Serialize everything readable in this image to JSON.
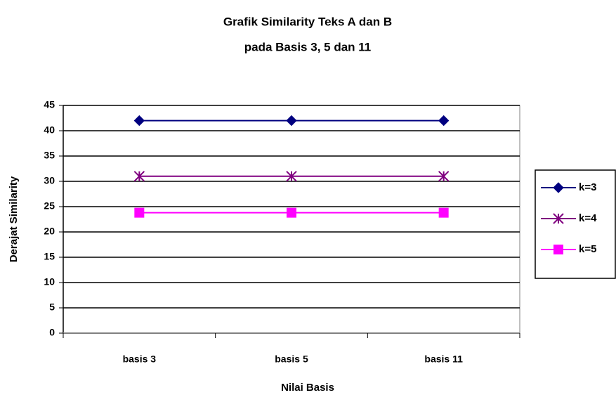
{
  "chart_data": {
    "type": "line",
    "title": "Grafik Similarity Teks A dan B",
    "subtitle": "pada Basis 3, 5 dan 11",
    "x_label": "Nilai Basis",
    "y_label": "Derajat Similarity",
    "categories": [
      "basis 3",
      "basis 5",
      "basis 11"
    ],
    "series": [
      {
        "name": "k=3",
        "color": "#000080",
        "marker": "diamond",
        "values": [
          42,
          42,
          42
        ]
      },
      {
        "name": "k=4",
        "color": "#800080",
        "marker": "asterisk",
        "values": [
          31,
          31,
          31
        ]
      },
      {
        "name": "k=5",
        "color": "#ff00ff",
        "marker": "square",
        "values": [
          23.8,
          23.8,
          23.8
        ]
      }
    ],
    "ylim": [
      0,
      45
    ],
    "yticks": [
      0,
      5,
      10,
      15,
      20,
      25,
      30,
      35,
      40,
      45
    ],
    "grid": true,
    "legend": "right"
  }
}
